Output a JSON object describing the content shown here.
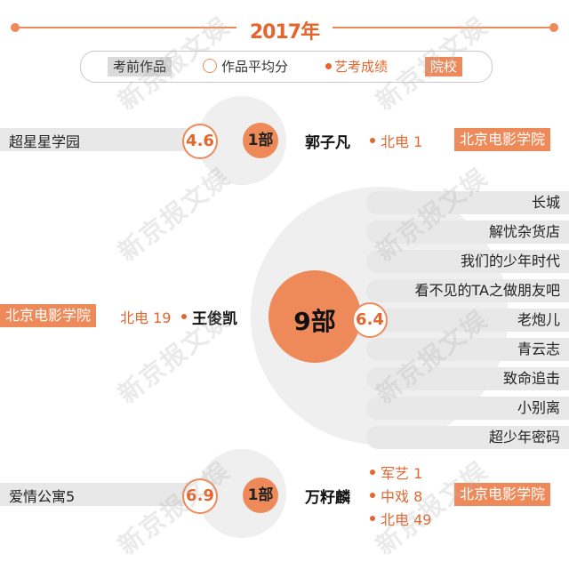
{
  "header": {
    "year": "2017年"
  },
  "legend": {
    "works_before_exam": "考前作品",
    "avg_score": "作品平均分",
    "exam_rank": "艺考成绩",
    "school": "院校"
  },
  "people": [
    {
      "name": "郭子凡",
      "count": "1部",
      "score": "4.6",
      "rank": "北电 1",
      "school": "北京电影学院",
      "works": [
        "超星星学园"
      ]
    },
    {
      "name": "王俊凯",
      "count": "9部",
      "score": "6.4",
      "rank": "北电 19",
      "school": "北京电影学院",
      "works": [
        "长城",
        "解忧杂货店",
        "我们的少年时代",
        "看不见的TA之做朋友吧",
        "老炮儿",
        "青云志",
        "致命追击",
        "小别离",
        "超少年密码"
      ]
    },
    {
      "name": "万籽麟",
      "count": "1部",
      "score": "6.9",
      "ranks": [
        "军艺 1",
        "中戏 8",
        "北电 49"
      ],
      "school": "北京电影学院",
      "works": [
        "爱情公寓5"
      ]
    }
  ],
  "watermark": "新京报文娱",
  "colors": {
    "accent": "#ee8a5a",
    "accent_dark": "#e2662e",
    "gray": "#e8e8e8"
  }
}
